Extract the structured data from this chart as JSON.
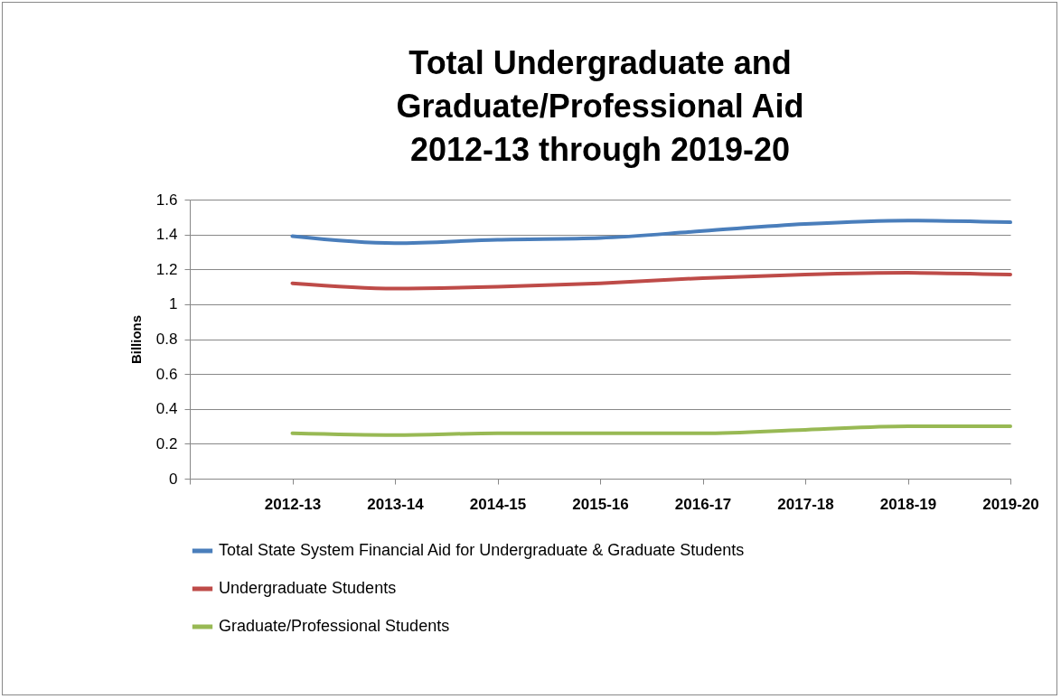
{
  "chart_data": {
    "type": "line",
    "title": "Total Undergraduate and\nGraduate/Professional Aid\n2012-13 through 2019-20",
    "ylabel": "Billions",
    "categories": [
      null,
      "2012-13",
      "2013-14",
      "2014-15",
      "2015-16",
      "2016-17",
      "2017-18",
      "2018-19",
      "2019-20"
    ],
    "series": [
      {
        "name": "Total State System Financial Aid for Undergraduate & Graduate Students",
        "color": "#4a7ebb",
        "values": [
          null,
          1.39,
          1.35,
          1.37,
          1.38,
          1.42,
          1.46,
          1.48,
          1.47
        ]
      },
      {
        "name": "Undergraduate Students",
        "color": "#be4b48",
        "values": [
          null,
          1.12,
          1.09,
          1.1,
          1.12,
          1.15,
          1.17,
          1.18,
          1.17
        ]
      },
      {
        "name": "Graduate/Professional Students",
        "color": "#98b954",
        "values": [
          null,
          0.26,
          0.25,
          0.26,
          0.26,
          0.26,
          0.28,
          0.3,
          0.3
        ]
      }
    ],
    "ylim": [
      0,
      1.6
    ],
    "yticks": [
      0,
      0.2,
      0.4,
      0.6,
      0.8,
      1,
      1.2,
      1.4,
      1.6
    ],
    "grid": "y",
    "legend": "bottom",
    "line_style": "solid",
    "marker": "none"
  }
}
